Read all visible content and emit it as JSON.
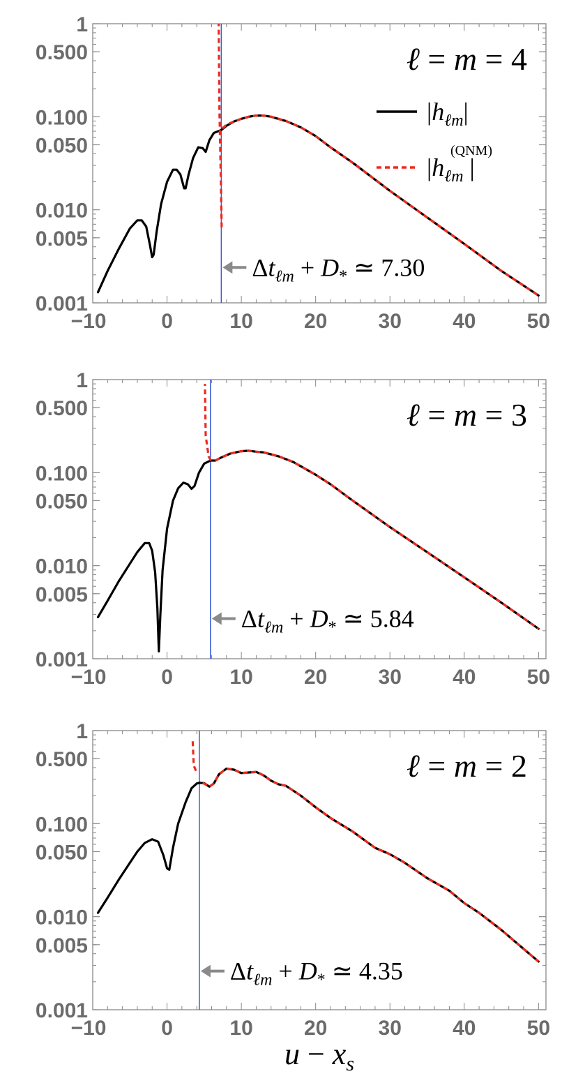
{
  "chart_data": [
    {
      "type": "line",
      "title": "ℓ = m = 4",
      "title_parts": {
        "ell": "ℓ",
        "eq1": " = ",
        "m": "m",
        "eq2": " = ",
        "num": "4"
      },
      "xlim": [
        -10,
        51
      ],
      "ylim": [
        0.001,
        1
      ],
      "yscale": "log",
      "xticks": [
        -10,
        0,
        10,
        20,
        30,
        40,
        50
      ],
      "xtick_labels": [
        "−10",
        "0",
        "10",
        "20",
        "30",
        "40",
        "50"
      ],
      "yticks": [
        1,
        0.5,
        0.1,
        0.05,
        0.01,
        0.005,
        0.001
      ],
      "ytick_labels": [
        "1",
        "0.500",
        "0.100",
        "0.050",
        "0.010",
        "0.005",
        "0.001"
      ],
      "legend": {
        "placement": "top-right",
        "entries": [
          {
            "name": "|h_ℓm|",
            "parts": {
              "l": "|",
              "h": "h",
              "sub": "ℓm",
              "r": "|"
            },
            "color": "#000000",
            "style": "solid"
          },
          {
            "name": "|h_ℓm^(QNM)|",
            "parts": {
              "l": "|",
              "h": "h",
              "sub": "ℓm",
              "sup": "(QNM)",
              "r": "|"
            },
            "color": "#ee2a1e",
            "style": "dashed"
          }
        ]
      },
      "vline": {
        "x": 7.3,
        "color": "#3b5bd6"
      },
      "annotation": {
        "text": "Δt_ℓm + D_* ≃ 7.30",
        "parts": {
          "delta": "Δ",
          "t": "t",
          "sub": "ℓm",
          "plus": " + ",
          "D": "D",
          "star": "*",
          "approx": " ≃ ",
          "val": "7.30"
        },
        "y": 0.0024
      },
      "series": [
        {
          "color": "#000000",
          "style": "solid",
          "points": [
            [
              -9.3,
              0.0013
            ],
            [
              -8,
              0.0022
            ],
            [
              -6.5,
              0.0038
            ],
            [
              -5,
              0.0063
            ],
            [
              -4,
              0.0077
            ],
            [
              -3.4,
              0.0077
            ],
            [
              -2.8,
              0.0066
            ],
            [
              -2.3,
              0.0042
            ],
            [
              -2,
              0.0031
            ],
            [
              -1.8,
              0.0033
            ],
            [
              -1.4,
              0.0058
            ],
            [
              -0.8,
              0.0115
            ],
            [
              0,
              0.02
            ],
            [
              0.8,
              0.027
            ],
            [
              1.3,
              0.027
            ],
            [
              1.8,
              0.024
            ],
            [
              2.3,
              0.017
            ],
            [
              2.5,
              0.017
            ],
            [
              2.9,
              0.024
            ],
            [
              3.5,
              0.036
            ],
            [
              4.2,
              0.047
            ],
            [
              4.8,
              0.046
            ],
            [
              5.2,
              0.042
            ],
            [
              5.7,
              0.056
            ],
            [
              6.3,
              0.067
            ],
            [
              6.9,
              0.07
            ],
            [
              7.3,
              0.072
            ],
            [
              8,
              0.08
            ],
            [
              9,
              0.089
            ],
            [
              10,
              0.095
            ],
            [
              11,
              0.1
            ],
            [
              12,
              0.103
            ],
            [
              13,
              0.103
            ],
            [
              14,
              0.1
            ],
            [
              16,
              0.09
            ],
            [
              18,
              0.077
            ],
            [
              20,
              0.062
            ],
            [
              22,
              0.047
            ],
            [
              25,
              0.032
            ],
            [
              30,
              0.016
            ],
            [
              35,
              0.0083
            ],
            [
              40,
              0.0043
            ],
            [
              45,
              0.0022
            ],
            [
              50,
              0.0012
            ]
          ]
        },
        {
          "color": "#ee2a1e",
          "style": "dashed",
          "points": [
            [
              7.35,
              0.0065
            ],
            [
              7.25,
              0.02
            ],
            [
              7.05,
              0.12
            ],
            [
              6.95,
              1.0
            ]
          ],
          "points_b": [
            [
              7.45,
              0.075
            ],
            [
              8,
              0.082
            ],
            [
              9,
              0.089
            ],
            [
              10,
              0.095
            ],
            [
              11,
              0.1
            ],
            [
              12,
              0.103
            ],
            [
              13,
              0.103
            ],
            [
              14,
              0.1
            ],
            [
              16,
              0.09
            ],
            [
              18,
              0.077
            ],
            [
              20,
              0.062
            ],
            [
              22,
              0.047
            ],
            [
              25,
              0.032
            ],
            [
              30,
              0.016
            ],
            [
              35,
              0.0083
            ],
            [
              40,
              0.0043
            ],
            [
              45,
              0.0022
            ],
            [
              50,
              0.0012
            ]
          ]
        }
      ]
    },
    {
      "type": "line",
      "title": "ℓ = m = 3",
      "title_parts": {
        "ell": "ℓ",
        "eq1": " = ",
        "m": "m",
        "eq2": " = ",
        "num": "3"
      },
      "xlim": [
        -10,
        51
      ],
      "ylim": [
        0.001,
        1
      ],
      "yscale": "log",
      "xticks": [
        -10,
        0,
        10,
        20,
        30,
        40,
        50
      ],
      "xtick_labels": [
        "−10",
        "0",
        "10",
        "20",
        "30",
        "40",
        "50"
      ],
      "yticks": [
        1,
        0.5,
        0.1,
        0.05,
        0.01,
        0.005,
        0.001
      ],
      "ytick_labels": [
        "1",
        "0.500",
        "0.100",
        "0.050",
        "0.010",
        "0.005",
        "0.001"
      ],
      "vline": {
        "x": 5.84,
        "color": "#3b5bd6"
      },
      "annotation": {
        "text": "Δt_ℓm + D_* ≃ 5.84",
        "parts": {
          "delta": "Δ",
          "t": "t",
          "sub": "ℓm",
          "plus": " + ",
          "D": "D",
          "star": "*",
          "approx": " ≃ ",
          "val": "5.84"
        },
        "y": 0.0027
      },
      "series": [
        {
          "color": "#000000",
          "style": "solid",
          "points": [
            [
              -9.3,
              0.0028
            ],
            [
              -8,
              0.0042
            ],
            [
              -6.5,
              0.0068
            ],
            [
              -5,
              0.0105
            ],
            [
              -4,
              0.014
            ],
            [
              -3,
              0.0175
            ],
            [
              -2.4,
              0.0175
            ],
            [
              -2,
              0.0145
            ],
            [
              -1.6,
              0.0085
            ],
            [
              -1.3,
              0.0035
            ],
            [
              -1.1,
              0.0012
            ],
            [
              -0.9,
              0.003
            ],
            [
              -0.6,
              0.009
            ],
            [
              0,
              0.025
            ],
            [
              0.8,
              0.05
            ],
            [
              1.5,
              0.068
            ],
            [
              2.2,
              0.078
            ],
            [
              2.8,
              0.075
            ],
            [
              3.3,
              0.067
            ],
            [
              3.7,
              0.072
            ],
            [
              4.3,
              0.1
            ],
            [
              5,
              0.125
            ],
            [
              5.84,
              0.135
            ],
            [
              6.5,
              0.135
            ],
            [
              7.5,
              0.148
            ],
            [
              8.5,
              0.16
            ],
            [
              10,
              0.17
            ],
            [
              11,
              0.172
            ],
            [
              12,
              0.168
            ],
            [
              13,
              0.165
            ],
            [
              15,
              0.15
            ],
            [
              17,
              0.13
            ],
            [
              20,
              0.095
            ],
            [
              22,
              0.075
            ],
            [
              25,
              0.05
            ],
            [
              30,
              0.026
            ],
            [
              35,
              0.014
            ],
            [
              40,
              0.0075
            ],
            [
              45,
              0.004
            ],
            [
              50,
              0.0021
            ]
          ]
        },
        {
          "color": "#ee2a1e",
          "style": "dashed",
          "points": [
            [
              5.9,
              0.135
            ],
            [
              5.6,
              0.15
            ],
            [
              5.2,
              0.25
            ],
            [
              5.1,
              0.9
            ]
          ],
          "points_b": [
            [
              6.5,
              0.135
            ],
            [
              7.5,
              0.148
            ],
            [
              8.5,
              0.16
            ],
            [
              10,
              0.17
            ],
            [
              11,
              0.172
            ],
            [
              12,
              0.168
            ],
            [
              13,
              0.165
            ],
            [
              15,
              0.15
            ],
            [
              17,
              0.13
            ],
            [
              20,
              0.095
            ],
            [
              22,
              0.075
            ],
            [
              25,
              0.05
            ],
            [
              30,
              0.026
            ],
            [
              35,
              0.014
            ],
            [
              40,
              0.0075
            ],
            [
              45,
              0.004
            ],
            [
              50,
              0.0021
            ]
          ]
        }
      ]
    },
    {
      "type": "line",
      "title": "ℓ = m = 2",
      "title_parts": {
        "ell": "ℓ",
        "eq1": " = ",
        "m": "m",
        "eq2": " = ",
        "num": "2"
      },
      "xlim": [
        -10,
        51
      ],
      "ylim": [
        0.001,
        1
      ],
      "yscale": "log",
      "xticks": [
        -10,
        0,
        10,
        20,
        30,
        40,
        50
      ],
      "xtick_labels": [
        "−10",
        "0",
        "10",
        "20",
        "30",
        "40",
        "50"
      ],
      "yticks": [
        1,
        0.5,
        0.1,
        0.05,
        0.01,
        0.005,
        0.001
      ],
      "ytick_labels": [
        "1",
        "0.500",
        "0.100",
        "0.050",
        "0.010",
        "0.005",
        "0.001"
      ],
      "xlabel": "u − x_s",
      "xlabel_parts": {
        "u": "u",
        "minus": " − ",
        "x": "x",
        "sub": "s"
      },
      "vline": {
        "x": 4.35,
        "color": "#3b5bd6"
      },
      "annotation": {
        "text": "Δt_ℓm + D_* ≃ 4.35",
        "parts": {
          "delta": "Δ",
          "t": "t",
          "sub": "ℓm",
          "plus": " + ",
          "D": "D",
          "star": "*",
          "approx": " ≃ ",
          "val": "4.35"
        },
        "y": 0.0026
      },
      "series": [
        {
          "color": "#000000",
          "style": "solid",
          "points": [
            [
              -9.3,
              0.011
            ],
            [
              -8,
              0.016
            ],
            [
              -6.5,
              0.025
            ],
            [
              -5,
              0.038
            ],
            [
              -4,
              0.05
            ],
            [
              -3,
              0.062
            ],
            [
              -2,
              0.068
            ],
            [
              -1.2,
              0.064
            ],
            [
              -0.5,
              0.046
            ],
            [
              0,
              0.033
            ],
            [
              0.3,
              0.032
            ],
            [
              0.8,
              0.055
            ],
            [
              1.5,
              0.1
            ],
            [
              2.5,
              0.17
            ],
            [
              3.3,
              0.24
            ],
            [
              4,
              0.27
            ],
            [
              4.35,
              0.275
            ],
            [
              5,
              0.272
            ],
            [
              5.7,
              0.25
            ],
            [
              6.3,
              0.27
            ],
            [
              7,
              0.34
            ],
            [
              8,
              0.39
            ],
            [
              9,
              0.38
            ],
            [
              10,
              0.35
            ],
            [
              11,
              0.355
            ],
            [
              12,
              0.36
            ],
            [
              13,
              0.33
            ],
            [
              14,
              0.29
            ],
            [
              15,
              0.265
            ],
            [
              16,
              0.255
            ],
            [
              18,
              0.2
            ],
            [
              20,
              0.15
            ],
            [
              22,
              0.115
            ],
            [
              25,
              0.082
            ],
            [
              28,
              0.055
            ],
            [
              30,
              0.047
            ],
            [
              32,
              0.038
            ],
            [
              35,
              0.026
            ],
            [
              38,
              0.019
            ],
            [
              40,
              0.014
            ],
            [
              42,
              0.011
            ],
            [
              45,
              0.0072
            ],
            [
              48,
              0.0045
            ],
            [
              50,
              0.0033
            ]
          ]
        },
        {
          "color": "#ee2a1e",
          "style": "dashed",
          "points": [
            [
              3.9,
              0.37
            ],
            [
              3.6,
              0.42
            ],
            [
              3.5,
              0.62
            ],
            [
              3.45,
              0.8
            ]
          ],
          "points_b": [
            [
              4.8,
              0.275
            ],
            [
              5.7,
              0.25
            ],
            [
              6.3,
              0.27
            ],
            [
              7,
              0.34
            ],
            [
              8,
              0.39
            ],
            [
              9,
              0.38
            ],
            [
              10,
              0.35
            ],
            [
              11,
              0.355
            ],
            [
              12,
              0.36
            ],
            [
              13,
              0.33
            ],
            [
              14,
              0.29
            ],
            [
              15,
              0.265
            ],
            [
              16,
              0.255
            ],
            [
              18,
              0.2
            ],
            [
              20,
              0.15
            ],
            [
              22,
              0.115
            ],
            [
              25,
              0.082
            ],
            [
              28,
              0.055
            ],
            [
              30,
              0.047
            ],
            [
              32,
              0.038
            ],
            [
              35,
              0.026
            ],
            [
              38,
              0.019
            ],
            [
              40,
              0.014
            ],
            [
              42,
              0.011
            ],
            [
              45,
              0.0072
            ],
            [
              48,
              0.0045
            ],
            [
              50,
              0.0033
            ]
          ]
        }
      ]
    }
  ]
}
